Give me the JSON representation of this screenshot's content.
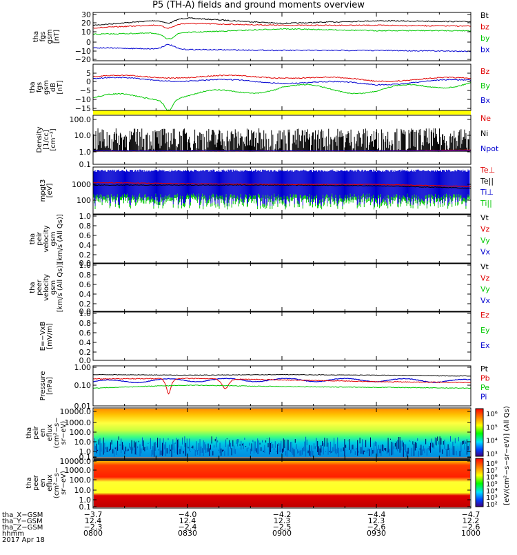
{
  "title": "P5 (TH-A) fields and ground moments overview",
  "colors": {
    "black": "#000000",
    "red": "#e00000",
    "green": "#00c800",
    "blue": "#0000d0",
    "yellow": "#ffff00"
  },
  "panels": [
    {
      "id": "fgs-gsm-b",
      "ylabel": [
        "tha",
        "fgs",
        "gsm",
        "[nT]"
      ],
      "ticks": [
        "30",
        "20",
        "10",
        "0",
        "−10",
        "−20"
      ],
      "legend": [
        {
          "text": "Bt",
          "color": "black"
        },
        {
          "text": "bz",
          "color": "red"
        },
        {
          "text": "by",
          "color": "green"
        },
        {
          "text": "bx",
          "color": "blue"
        }
      ]
    },
    {
      "id": "fgs-gsm-dB",
      "ylabel": [
        "tha",
        "fgs",
        "gsm",
        "dB",
        "[nT]"
      ],
      "ticks": [
        "5",
        "0",
        "−5",
        "−10",
        "−15"
      ],
      "legend": [
        {
          "text": "Bz",
          "color": "red"
        },
        {
          "text": "By",
          "color": "green"
        },
        {
          "text": "Bx",
          "color": "blue"
        }
      ]
    },
    {
      "id": "density",
      "ylabel": [
        "Density",
        "[1/cc]",
        "[cm⁻³]"
      ],
      "ticks": [
        "100.0",
        "10.0",
        "1.0",
        "0.1"
      ],
      "legend": [
        {
          "text": "Ne",
          "color": "red"
        },
        {
          "text": "Ni",
          "color": "black"
        },
        {
          "text": "Npot",
          "color": "blue"
        }
      ]
    },
    {
      "id": "temperature",
      "ylabel": [
        "mpgt3",
        "[eV]"
      ],
      "ticks": [
        "1000",
        "100"
      ],
      "legend": [
        {
          "text": "Te⊥",
          "color": "red"
        },
        {
          "text": "Te||",
          "color": "black"
        },
        {
          "text": "Ti⊥",
          "color": "blue"
        },
        {
          "text": "Ti||",
          "color": "green"
        }
      ]
    },
    {
      "id": "peir-velocity",
      "ylabel": [
        "tha",
        "peir",
        "velocity",
        "gsm",
        "[km/s (All Qs)]"
      ],
      "ticks": [
        "1.0",
        "0.8",
        "0.6",
        "0.4",
        "0.2",
        "0.0"
      ],
      "legend": [
        {
          "text": "Vt",
          "color": "black"
        },
        {
          "text": "Vz",
          "color": "red"
        },
        {
          "text": "Vy",
          "color": "green"
        },
        {
          "text": "Vx",
          "color": "blue"
        }
      ]
    },
    {
      "id": "peer-velocity",
      "ylabel": [
        "tha",
        "peer",
        "velocity",
        "gsm",
        "[km/s (All Qs)]"
      ],
      "ticks": [
        "1.0",
        "0.8",
        "0.6",
        "0.4",
        "0.2",
        "0.0"
      ],
      "legend": [
        {
          "text": "Vt",
          "color": "black"
        },
        {
          "text": "Vz",
          "color": "red"
        },
        {
          "text": "Vy",
          "color": "green"
        },
        {
          "text": "Vx",
          "color": "blue"
        }
      ]
    },
    {
      "id": "efield",
      "ylabel": [
        "E=−VxB",
        "[mV/m]"
      ],
      "ticks": [
        "1.0",
        "0.8",
        "0.6",
        "0.4",
        "0.2",
        "0.0"
      ],
      "legend": [
        {
          "text": "Ez",
          "color": "red"
        },
        {
          "text": "Ey",
          "color": "green"
        },
        {
          "text": "Ex",
          "color": "blue"
        }
      ]
    },
    {
      "id": "pressure",
      "ylabel": [
        "Pressure",
        "[nPa]"
      ],
      "ticks": [
        "1.00",
        "0.10",
        "0.01"
      ],
      "legend": [
        {
          "text": "Pt",
          "color": "black"
        },
        {
          "text": "Pb",
          "color": "red"
        },
        {
          "text": "Pe",
          "color": "green"
        },
        {
          "text": "Pi",
          "color": "blue"
        }
      ]
    },
    {
      "id": "peir-eflux",
      "ylabel": [
        "tha",
        "peir",
        "en",
        "eflux",
        "(cm²−s−",
        "sr−eV)"
      ],
      "ticks": [
        "10000.0",
        "1000.0",
        "100.0",
        "10.0",
        "1.0",
        "0.1"
      ],
      "colorbar_ticks": [
        "10⁶",
        "10⁵",
        "10⁴",
        "10³"
      ]
    },
    {
      "id": "peer-eflux",
      "ylabel": [
        "tha",
        "peer",
        "en",
        "eflux",
        "(cm²−s−",
        "sr−eV)"
      ],
      "ticks": [
        "10000.0",
        "1000.0",
        "100.0",
        "10.0",
        "1.0",
        "0.1"
      ],
      "colorbar_ticks": [
        "10⁸",
        "10⁷",
        "10⁶",
        "10⁵",
        "10⁴",
        "10³",
        "10²"
      ]
    }
  ],
  "colorbar_label": "[eV/(cm²−s−sr−eV)] (All Qs)",
  "xaxis": {
    "rows": [
      {
        "label": "tha_X−GSM",
        "values": [
          "−3.7",
          "−4.0",
          "−4.2",
          "−4.4",
          "−4.7"
        ]
      },
      {
        "label": "tha_Y−GSM",
        "values": [
          "12.4",
          "12.4",
          "12.3",
          "12.3",
          "12.2"
        ]
      },
      {
        "label": "tha_Z−GSM",
        "values": [
          "−2.3",
          "−2.4",
          "−2.5",
          "−2.6",
          "−2.6"
        ]
      },
      {
        "label": "hhmm",
        "values": [
          "0800",
          "0830",
          "0900",
          "0930",
          "1000"
        ]
      }
    ],
    "date": "2017 Apr 18"
  },
  "chart_data": {
    "type": "line",
    "title": "P5 (TH-A) fields and ground moments overview",
    "x": [
      "0800",
      "0830",
      "0900",
      "0930",
      "1000"
    ],
    "xlabel": "hhmm",
    "date": "2017 Apr 18",
    "panels": [
      {
        "name": "fgs gsm",
        "ylabel": "tha fgs gsm [nT]",
        "ylim": [
          -20,
          30
        ],
        "series": [
          {
            "name": "Bt",
            "values": [
              18,
              26,
              20,
              23,
              22
            ]
          },
          {
            "name": "bz",
            "values": [
              15,
              20,
              18,
              18,
              17
            ]
          },
          {
            "name": "by",
            "values": [
              8,
              10,
              14,
              12,
              12
            ]
          },
          {
            "name": "bx",
            "values": [
              -7,
              -9,
              -10,
              -10,
              -11
            ]
          }
        ]
      },
      {
        "name": "fgs gsm dB",
        "ylabel": "tha fgs gsm dB [nT]",
        "ylim": [
          -17,
          7
        ],
        "series": [
          {
            "name": "Bz",
            "values": [
              3,
              3,
              3,
              1,
              2
            ]
          },
          {
            "name": "By",
            "values": [
              -9,
              -8,
              -3,
              -5,
              0
            ]
          },
          {
            "name": "Bx",
            "values": [
              2,
              1,
              0,
              -1,
              1
            ]
          }
        ]
      },
      {
        "name": "Density",
        "ylabel": "Density [1/cc]",
        "scale": "log",
        "ylim": [
          0.1,
          100
        ],
        "series": [
          {
            "name": "Ne",
            "values": [
              0.8,
              0.8,
              0.8,
              0.8,
              0.9
            ]
          },
          {
            "name": "Ni",
            "values": [
              2,
              3,
              2,
              3,
              2
            ]
          },
          {
            "name": "Npot",
            "values": [
              0.8,
              0.8,
              0.8,
              0.8,
              0.8
            ]
          }
        ]
      },
      {
        "name": "Temperature",
        "ylabel": "mpgt3 [eV]",
        "scale": "log",
        "ylim": [
          60,
          3000
        ],
        "series": [
          {
            "name": "Te⊥",
            "values": [
              1000,
              900,
              850,
              850,
              700
            ]
          },
          {
            "name": "Te||",
            "values": [
              800,
              800,
              800,
              750,
              600
            ]
          },
          {
            "name": "Ti⊥",
            "values": [
              2500,
              2000,
              2200,
              2000,
              1800
            ]
          },
          {
            "name": "Ti||",
            "values": [
              300,
              400,
              300,
              400,
              350
            ]
          }
        ]
      },
      {
        "name": "Pressure",
        "ylabel": "Pressure [nPa]",
        "scale": "log",
        "ylim": [
          0.01,
          1
        ],
        "series": [
          {
            "name": "Pt",
            "values": [
              0.48,
              0.45,
              0.48,
              0.45,
              0.4
            ]
          },
          {
            "name": "Pb",
            "values": [
              0.28,
              0.3,
              0.25,
              0.2,
              0.18
            ]
          },
          {
            "name": "Pe",
            "values": [
              0.09,
              0.13,
              0.11,
              0.1,
              0.09
            ]
          },
          {
            "name": "Pi",
            "values": [
              0.2,
              0.25,
              0.25,
              0.25,
              0.22
            ]
          }
        ]
      }
    ]
  }
}
